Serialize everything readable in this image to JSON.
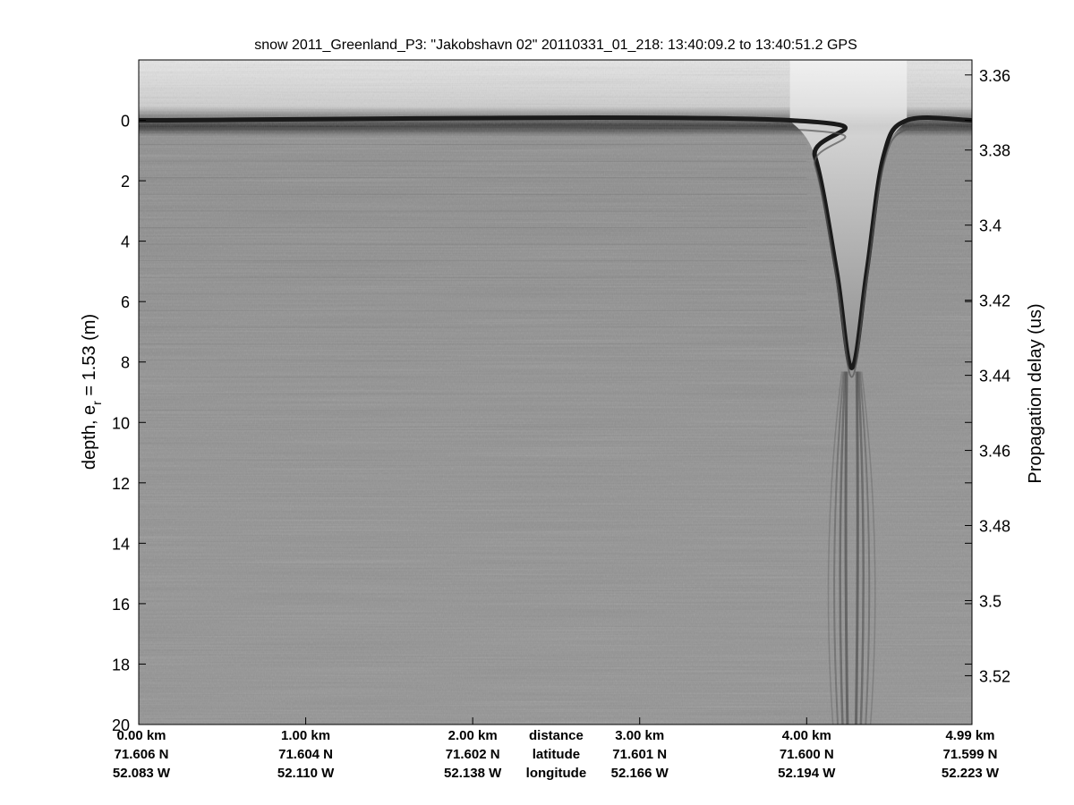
{
  "chart_data": {
    "type": "heatmap",
    "title": "snow 2011_Greenland_P3: \"Jakobshavn 02\"  20110331_01_218: 13:40:09.2 to 13:40:51.2 GPS",
    "ylabel_main": "depth, e",
    "ylabel_sub": "r",
    "ylabel_tail": " = 1.53 (m)",
    "y2label": "Propagation delay (us)",
    "colormap": "grayscale",
    "ylim": [
      -2,
      20
    ],
    "y_direction": "down",
    "y_ticks": [
      0,
      2,
      4,
      6,
      8,
      10,
      12,
      14,
      16,
      18,
      20
    ],
    "y2lim": [
      3.356,
      3.533
    ],
    "y2_ticks": [
      3.36,
      3.38,
      3.4,
      3.42,
      3.44,
      3.46,
      3.48,
      3.5,
      3.52
    ],
    "y2_tick_labels": [
      "3.36",
      "3.38",
      "3.4",
      "3.42",
      "3.44",
      "3.46",
      "3.48",
      "3.5",
      "3.52"
    ],
    "xlim_km": [
      0,
      4.99
    ],
    "x_tick_km": [
      0,
      1,
      2,
      3,
      4,
      4.99
    ],
    "x_labels": [
      {
        "distance": "0.00 km",
        "latitude": "71.606 N",
        "longitude": "52.083 W"
      },
      {
        "distance": "1.00 km",
        "latitude": "71.604 N",
        "longitude": "52.110 W"
      },
      {
        "distance": "2.00 km",
        "latitude": "71.602 N",
        "longitude": "52.138 W"
      },
      {
        "distance": "3.00 km",
        "latitude": "71.601 N",
        "longitude": "52.166 W"
      },
      {
        "distance": "4.00 km",
        "latitude": "71.600 N",
        "longitude": "52.194 W"
      },
      {
        "distance": "4.99 km",
        "latitude": "71.599 N",
        "longitude": "52.223 W"
      }
    ],
    "x_legend_label": {
      "km": 2.5,
      "distance": "distance",
      "latitude": "latitude",
      "longitude": "longitude"
    },
    "surface_profile": [
      {
        "km": 0.0,
        "depth": 0.0
      },
      {
        "km": 3.9,
        "depth": 0.0
      },
      {
        "km": 4.05,
        "depth": 1.2
      },
      {
        "km": 4.18,
        "depth": 5.0
      },
      {
        "km": 4.27,
        "depth": 8.2
      },
      {
        "km": 4.36,
        "depth": 5.0
      },
      {
        "km": 4.46,
        "depth": 1.2
      },
      {
        "km": 4.6,
        "depth": 0.0
      },
      {
        "km": 4.99,
        "depth": 0.0
      }
    ],
    "grid": false
  }
}
